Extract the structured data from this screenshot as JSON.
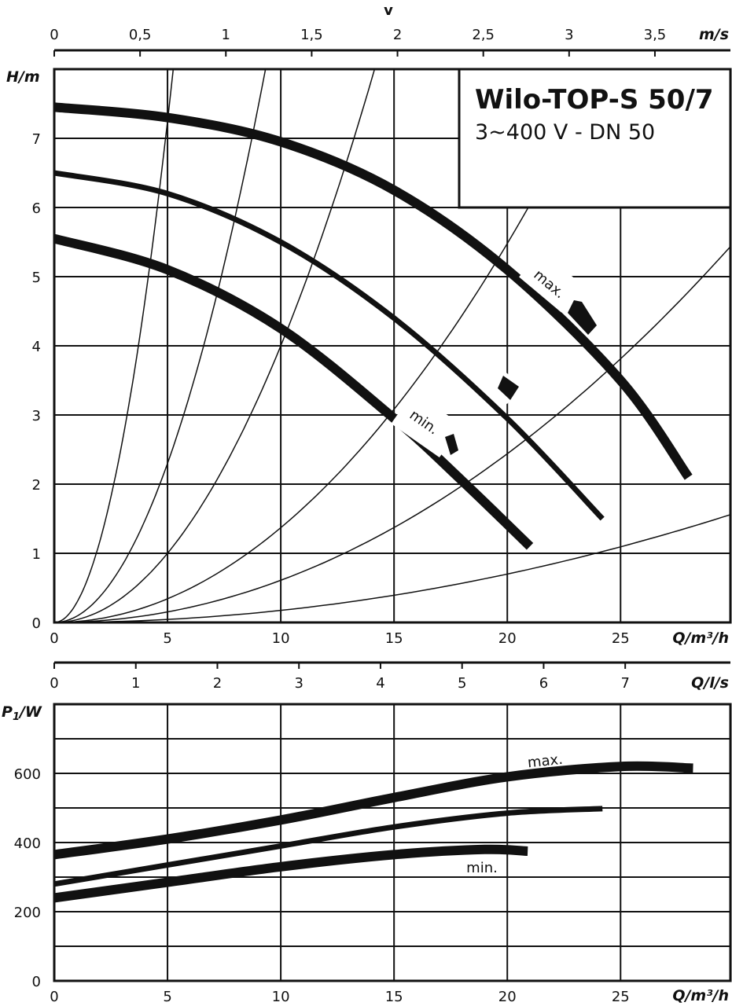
{
  "colors": {
    "ink": "#111111",
    "background": "#ffffff"
  },
  "legend_box": {
    "title": "Wilo-TOP-S 50/7",
    "subtitle": "3~400 V - DN 50"
  },
  "top_axis": {
    "symbol": "v",
    "unit_label": "m/s",
    "ticks": [
      "0",
      "0,5",
      "1",
      "1,5",
      "2",
      "2,5",
      "3",
      "3,5"
    ],
    "tick_values": [
      0,
      0.5,
      1,
      1.5,
      2,
      2.5,
      3,
      3.5
    ],
    "range": [
      0,
      3.94
    ]
  },
  "middle_axis": {
    "unit_label": "Q/l/s",
    "ticks": [
      "0",
      "1",
      "2",
      "3",
      "4",
      "5",
      "6",
      "7"
    ],
    "tick_values": [
      0,
      1,
      2,
      3,
      4,
      5,
      6,
      7
    ],
    "range": [
      0,
      8.29
    ]
  },
  "chart_data": [
    {
      "type": "line",
      "name_label": "head",
      "xlabel": "Q/m³/h",
      "ylabel": "H/m",
      "xlim": [
        0,
        29.85
      ],
      "ylim": [
        0,
        8
      ],
      "x_ticks": [
        "0",
        "5",
        "10",
        "15",
        "20",
        "25"
      ],
      "x_tick_values": [
        0,
        5,
        10,
        15,
        20,
        25
      ],
      "y_ticks": [
        "0",
        "1",
        "2",
        "3",
        "4",
        "5",
        "6",
        "7"
      ],
      "y_tick_values": [
        0,
        1,
        2,
        3,
        4,
        5,
        6,
        7
      ],
      "grid": true,
      "series": [
        {
          "name": "max.",
          "label_shown": true,
          "stroke": "thick",
          "x": [
            0,
            5,
            10,
            15,
            20,
            25,
            28
          ],
          "y": [
            7.45,
            7.3,
            6.95,
            6.25,
            5.1,
            3.5,
            2.1
          ]
        },
        {
          "x": [
            0,
            5,
            10,
            15,
            20,
            24.2
          ],
          "stroke": "medium",
          "y": [
            6.5,
            6.2,
            5.5,
            4.4,
            2.95,
            1.5
          ]
        },
        {
          "name": "min.",
          "label_shown": true,
          "stroke": "thick",
          "x": [
            0,
            5,
            10,
            15,
            18,
            21
          ],
          "y": [
            5.55,
            5.1,
            4.25,
            2.95,
            2.05,
            1.1
          ]
        }
      ],
      "system_curves": [
        {
          "k": 0.29,
          "x_end": 5.3
        },
        {
          "k": 0.092,
          "x_end": 10.5
        },
        {
          "k": 0.04,
          "x_end": 16.3
        },
        {
          "k": 0.0137,
          "x_end": 22.0
        },
        {
          "k": 0.0061,
          "x_end": 29.85
        },
        {
          "k": 0.00175,
          "x_end": 29.85
        }
      ],
      "labels": {
        "max": "max.",
        "min": "min."
      }
    },
    {
      "type": "line",
      "name_label": "power",
      "xlabel": "Q/m³/h",
      "ylabel": "P1/W",
      "xlim": [
        0,
        29.85
      ],
      "ylim": [
        0,
        800
      ],
      "x_ticks": [
        "0",
        "5",
        "10",
        "15",
        "20",
        "25"
      ],
      "x_tick_values": [
        0,
        5,
        10,
        15,
        20,
        25
      ],
      "y_ticks": [
        "0",
        "200",
        "400",
        "600"
      ],
      "y_tick_values": [
        0,
        200,
        400,
        600
      ],
      "grid": true,
      "series": [
        {
          "name": "max.",
          "label_shown": true,
          "stroke": "thick",
          "x": [
            0,
            5,
            10,
            15,
            20,
            25,
            28.2
          ],
          "y": [
            365,
            410,
            465,
            530,
            590,
            620,
            615
          ]
        },
        {
          "stroke": "medium",
          "x": [
            0,
            5,
            10,
            15,
            20,
            24.2
          ],
          "y": [
            280,
            335,
            390,
            445,
            485,
            498
          ]
        },
        {
          "name": "min.",
          "label_shown": true,
          "stroke": "thick",
          "x": [
            0,
            5,
            10,
            15,
            19,
            20.9
          ],
          "y": [
            240,
            285,
            330,
            365,
            380,
            375
          ]
        }
      ],
      "labels": {
        "max": "max.",
        "min": "min."
      }
    }
  ]
}
